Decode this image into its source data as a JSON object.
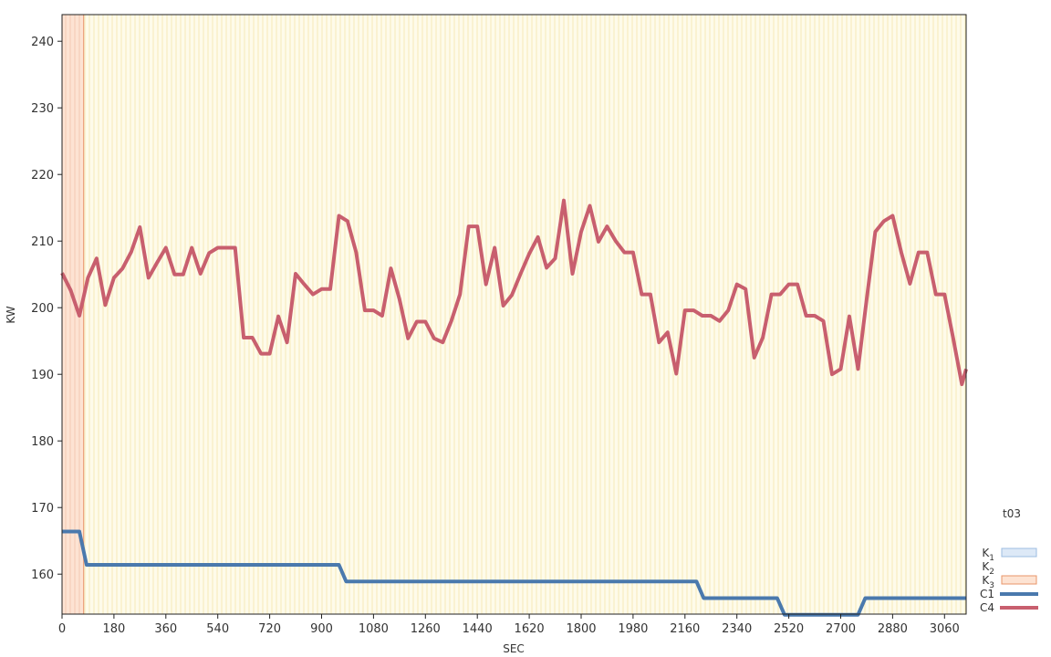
{
  "chart_data": {
    "type": "line",
    "xlabel": "SEC",
    "ylabel": "KW",
    "xlim": [
      0,
      3135
    ],
    "ylim": [
      154,
      244
    ],
    "x_ticks": [
      0,
      180,
      360,
      540,
      720,
      900,
      1080,
      1260,
      1440,
      1620,
      1800,
      1980,
      2160,
      2340,
      2520,
      2700,
      2880,
      3060
    ],
    "y_ticks": [
      160,
      170,
      180,
      190,
      200,
      210,
      220,
      230,
      240
    ],
    "grid": false,
    "background_color": "#fefbea",
    "bands": [
      {
        "name": "K3",
        "x_start": 0,
        "x_end": 75,
        "color": "#fde3d3",
        "stroke": "#e8946a"
      }
    ],
    "legend": {
      "placement": "bottom-right",
      "title": "t03",
      "items": [
        {
          "key": "K1",
          "base": "K",
          "sub": "1",
          "kind": "box",
          "fill": "#dde9f7",
          "stroke": "#9dbde0"
        },
        {
          "key": "K2",
          "base": "K",
          "sub": "2",
          "kind": "box",
          "fill": "none",
          "stroke": "none"
        },
        {
          "key": "K3",
          "base": "K",
          "sub": "3",
          "kind": "box",
          "fill": "#fde3d3",
          "stroke": "#e8946a"
        },
        {
          "key": "C1",
          "base": "C1",
          "sub": "",
          "kind": "line",
          "color": "#4a79ad"
        },
        {
          "key": "C4",
          "base": "C4",
          "sub": "",
          "kind": "line",
          "color": "#c85f6e"
        }
      ]
    },
    "series": [
      {
        "name": "C4",
        "color": "#c85f6e",
        "points": [
          [
            0,
            205.2
          ],
          [
            30,
            202.6
          ],
          [
            60,
            198.8
          ],
          [
            90,
            204.5
          ],
          [
            120,
            207.4
          ],
          [
            150,
            200.4
          ],
          [
            180,
            204.5
          ],
          [
            210,
            205.9
          ],
          [
            240,
            208.4
          ],
          [
            270,
            212.1
          ],
          [
            300,
            204.5
          ],
          [
            330,
            206.8
          ],
          [
            360,
            209.0
          ],
          [
            390,
            205.0
          ],
          [
            420,
            205.0
          ],
          [
            450,
            209.0
          ],
          [
            480,
            205.1
          ],
          [
            510,
            208.2
          ],
          [
            540,
            209.0
          ],
          [
            570,
            209.0
          ],
          [
            600,
            209.0
          ],
          [
            630,
            195.5
          ],
          [
            660,
            195.5
          ],
          [
            690,
            193.1
          ],
          [
            720,
            193.1
          ],
          [
            750,
            198.7
          ],
          [
            780,
            194.8
          ],
          [
            810,
            205.1
          ],
          [
            840,
            203.5
          ],
          [
            870,
            202.0
          ],
          [
            900,
            202.8
          ],
          [
            930,
            202.8
          ],
          [
            960,
            213.8
          ],
          [
            990,
            213.0
          ],
          [
            1020,
            208.3
          ],
          [
            1050,
            199.6
          ],
          [
            1080,
            199.6
          ],
          [
            1110,
            198.8
          ],
          [
            1140,
            205.9
          ],
          [
            1170,
            201.3
          ],
          [
            1200,
            195.4
          ],
          [
            1230,
            197.9
          ],
          [
            1260,
            197.9
          ],
          [
            1290,
            195.4
          ],
          [
            1320,
            194.8
          ],
          [
            1350,
            198.0
          ],
          [
            1380,
            202.0
          ],
          [
            1410,
            212.2
          ],
          [
            1440,
            212.2
          ],
          [
            1470,
            203.5
          ],
          [
            1500,
            209.0
          ],
          [
            1530,
            200.3
          ],
          [
            1560,
            201.9
          ],
          [
            1590,
            205.1
          ],
          [
            1620,
            208.1
          ],
          [
            1650,
            210.6
          ],
          [
            1680,
            206.0
          ],
          [
            1710,
            207.4
          ],
          [
            1740,
            216.1
          ],
          [
            1770,
            205.1
          ],
          [
            1800,
            211.4
          ],
          [
            1830,
            215.3
          ],
          [
            1860,
            209.9
          ],
          [
            1890,
            212.2
          ],
          [
            1920,
            210.0
          ],
          [
            1950,
            208.3
          ],
          [
            1980,
            208.3
          ],
          [
            2010,
            202.0
          ],
          [
            2040,
            202.0
          ],
          [
            2070,
            194.8
          ],
          [
            2100,
            196.3
          ],
          [
            2130,
            190.1
          ],
          [
            2160,
            199.6
          ],
          [
            2190,
            199.6
          ],
          [
            2220,
            198.8
          ],
          [
            2250,
            198.8
          ],
          [
            2280,
            198.0
          ],
          [
            2310,
            199.6
          ],
          [
            2340,
            203.5
          ],
          [
            2370,
            202.8
          ],
          [
            2400,
            192.5
          ],
          [
            2430,
            195.5
          ],
          [
            2460,
            202.0
          ],
          [
            2490,
            202.0
          ],
          [
            2520,
            203.5
          ],
          [
            2550,
            203.5
          ],
          [
            2580,
            198.8
          ],
          [
            2610,
            198.8
          ],
          [
            2640,
            198.0
          ],
          [
            2670,
            190.0
          ],
          [
            2700,
            190.8
          ],
          [
            2730,
            198.7
          ],
          [
            2760,
            190.8
          ],
          [
            2790,
            201.2
          ],
          [
            2820,
            211.4
          ],
          [
            2850,
            213.0
          ],
          [
            2880,
            213.8
          ],
          [
            2910,
            208.3
          ],
          [
            2940,
            203.6
          ],
          [
            2970,
            208.3
          ],
          [
            3000,
            208.3
          ],
          [
            3030,
            202.0
          ],
          [
            3060,
            202.0
          ],
          [
            3090,
            195.4
          ],
          [
            3120,
            188.5
          ],
          [
            3135,
            190.8
          ]
        ]
      },
      {
        "name": "C1",
        "color": "#4a79ad",
        "points": [
          [
            0,
            166.4
          ],
          [
            60,
            166.4
          ],
          [
            85,
            161.4
          ],
          [
            960,
            161.4
          ],
          [
            985,
            158.9
          ],
          [
            2200,
            158.9
          ],
          [
            2225,
            156.4
          ],
          [
            2480,
            156.4
          ],
          [
            2505,
            153.9
          ],
          [
            2760,
            153.9
          ],
          [
            2785,
            156.4
          ],
          [
            3135,
            156.4
          ]
        ]
      }
    ]
  }
}
